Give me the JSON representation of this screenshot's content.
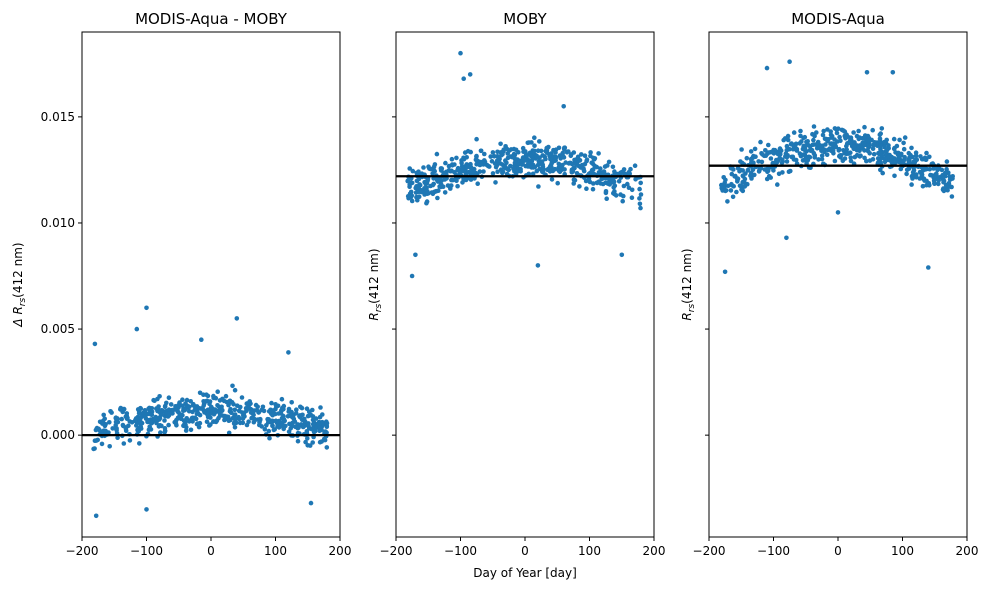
{
  "chart_data": {
    "type": "scatter",
    "xlabel": "Day of Year [day]",
    "xlim": [
      -200,
      200
    ],
    "xticks": [
      -200,
      -100,
      0,
      100,
      200
    ],
    "xtick_labels": [
      "−200",
      "−100",
      "0",
      "100",
      "200"
    ],
    "ylim": [
      -0.0048,
      0.019
    ],
    "yticks": [
      0.0,
      0.005,
      0.01,
      0.015
    ],
    "ytick_labels": [
      "0.000",
      "0.005",
      "0.010",
      "0.015"
    ],
    "marker_color": "#1f77b4",
    "line_color": "#000000",
    "panels": [
      {
        "title": "MODIS-Aqua - MOBY",
        "ylabel_prefix": "Δ ",
        "ylabel_base": "R",
        "ylabel_sub": "rs",
        "ylabel_suffix": "(412 nm)",
        "show_ytick_labels": true,
        "mean_line": 0.0,
        "model": {
          "base": 0.0002,
          "amp": 0.0009,
          "phase": 0,
          "noise": 0.0011,
          "seed": 11
        },
        "outliers": [
          [
            -178,
            -0.0038
          ],
          [
            -100,
            -0.0035
          ],
          [
            -100,
            0.006
          ],
          [
            -115,
            0.005
          ],
          [
            40,
            0.0055
          ],
          [
            -180,
            0.0043
          ],
          [
            155,
            -0.0032
          ],
          [
            120,
            0.0039
          ],
          [
            -15,
            0.0045
          ]
        ]
      },
      {
        "title": "MOBY",
        "ylabel_prefix": "",
        "ylabel_base": "R",
        "ylabel_sub": "rs",
        "ylabel_suffix": "(412 nm)",
        "show_ytick_labels": false,
        "mean_line": 0.0122,
        "model": {
          "base": 0.0115,
          "amp": 0.0015,
          "phase": 0,
          "noise": 0.0011,
          "seed": 23
        },
        "outliers": [
          [
            -100,
            0.018
          ],
          [
            -95,
            0.0168
          ],
          [
            -85,
            0.017
          ],
          [
            -175,
            0.0075
          ],
          [
            20,
            0.008
          ],
          [
            60,
            0.0155
          ],
          [
            -170,
            0.0085
          ],
          [
            150,
            0.0085
          ]
        ]
      },
      {
        "title": "MODIS-Aqua",
        "ylabel_prefix": "",
        "ylabel_base": "R",
        "ylabel_sub": "rs",
        "ylabel_suffix": "(412 nm)",
        "show_ytick_labels": false,
        "mean_line": 0.0127,
        "model": {
          "base": 0.0118,
          "amp": 0.0019,
          "phase": 0,
          "noise": 0.0011,
          "seed": 37
        },
        "outliers": [
          [
            -75,
            0.0176
          ],
          [
            -110,
            0.0173
          ],
          [
            -175,
            0.0077
          ],
          [
            140,
            0.0079
          ],
          [
            45,
            0.0171
          ],
          [
            85,
            0.0171
          ],
          [
            -80,
            0.0093
          ],
          [
            0,
            0.0105
          ]
        ]
      }
    ]
  }
}
